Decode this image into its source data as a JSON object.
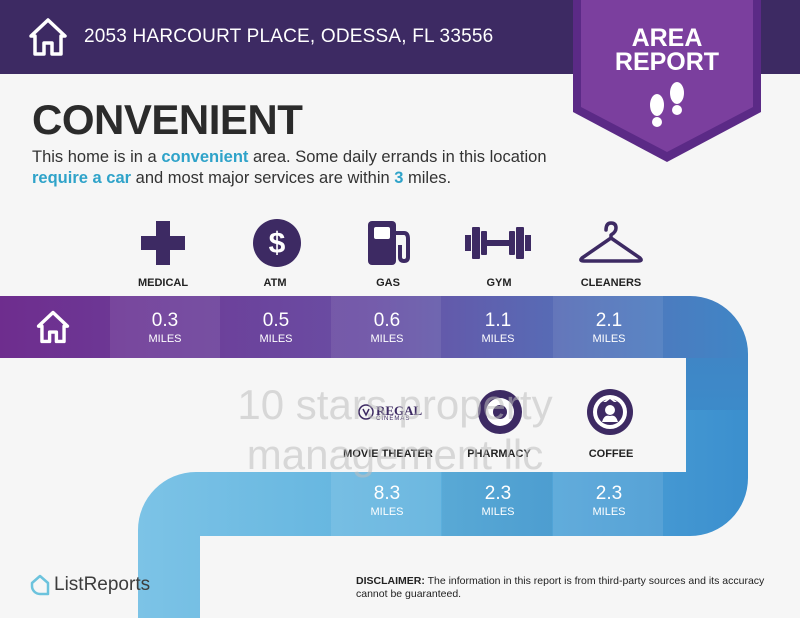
{
  "header": {
    "address": "2053 HARCOURT PLACE, ODESSA, FL 33556",
    "home_icon": "house-icon",
    "background": "#3d2a63"
  },
  "badge": {
    "line1": "AREA",
    "line2": "REPORT",
    "icon": "footprints-icon",
    "color": "#7b3f9e"
  },
  "headline": "CONVENIENT",
  "summary": {
    "part1": "This home is in a ",
    "hl1": "convenient",
    "part2": " area. Some daily errands in this location ",
    "hl2": "require a car",
    "part3": " and most major services are within ",
    "hl3": "3",
    "part4": " miles."
  },
  "amenities_row1": [
    {
      "label": "MEDICAL",
      "icon": "medical-cross-icon",
      "distance": "0.3",
      "unit": "MILES"
    },
    {
      "label": "ATM",
      "icon": "dollar-icon",
      "distance": "0.5",
      "unit": "MILES"
    },
    {
      "label": "GAS",
      "icon": "gas-pump-icon",
      "distance": "0.6",
      "unit": "MILES"
    },
    {
      "label": "GYM",
      "icon": "dumbbell-icon",
      "distance": "1.1",
      "unit": "MILES"
    },
    {
      "label": "CLEANERS",
      "icon": "hanger-icon",
      "distance": "2.1",
      "unit": "MILES"
    }
  ],
  "amenities_row2": [
    {
      "label": "MOVIE THEATER",
      "icon": "regal-cinemas-logo",
      "logo_text": "REGAL",
      "logo_sub": "CINEMAS",
      "distance": "8.3",
      "unit": "MILES"
    },
    {
      "label": "PHARMACY",
      "icon": "target-logo",
      "distance": "2.3",
      "unit": "MILES"
    },
    {
      "label": "COFFEE",
      "icon": "starbucks-logo",
      "distance": "2.3",
      "unit": "MILES"
    }
  ],
  "watermark": {
    "line1": "10 stars property",
    "line2": "management llc"
  },
  "footer": {
    "logo": "ListReports",
    "disclaimer_label": "DISCLAIMER:",
    "disclaimer_text": " The information in this report is from third-party sources and its accuracy cannot be guaranteed."
  },
  "colors": {
    "accent_blue": "#2fa3c9",
    "purple": "#6b2e8a"
  }
}
